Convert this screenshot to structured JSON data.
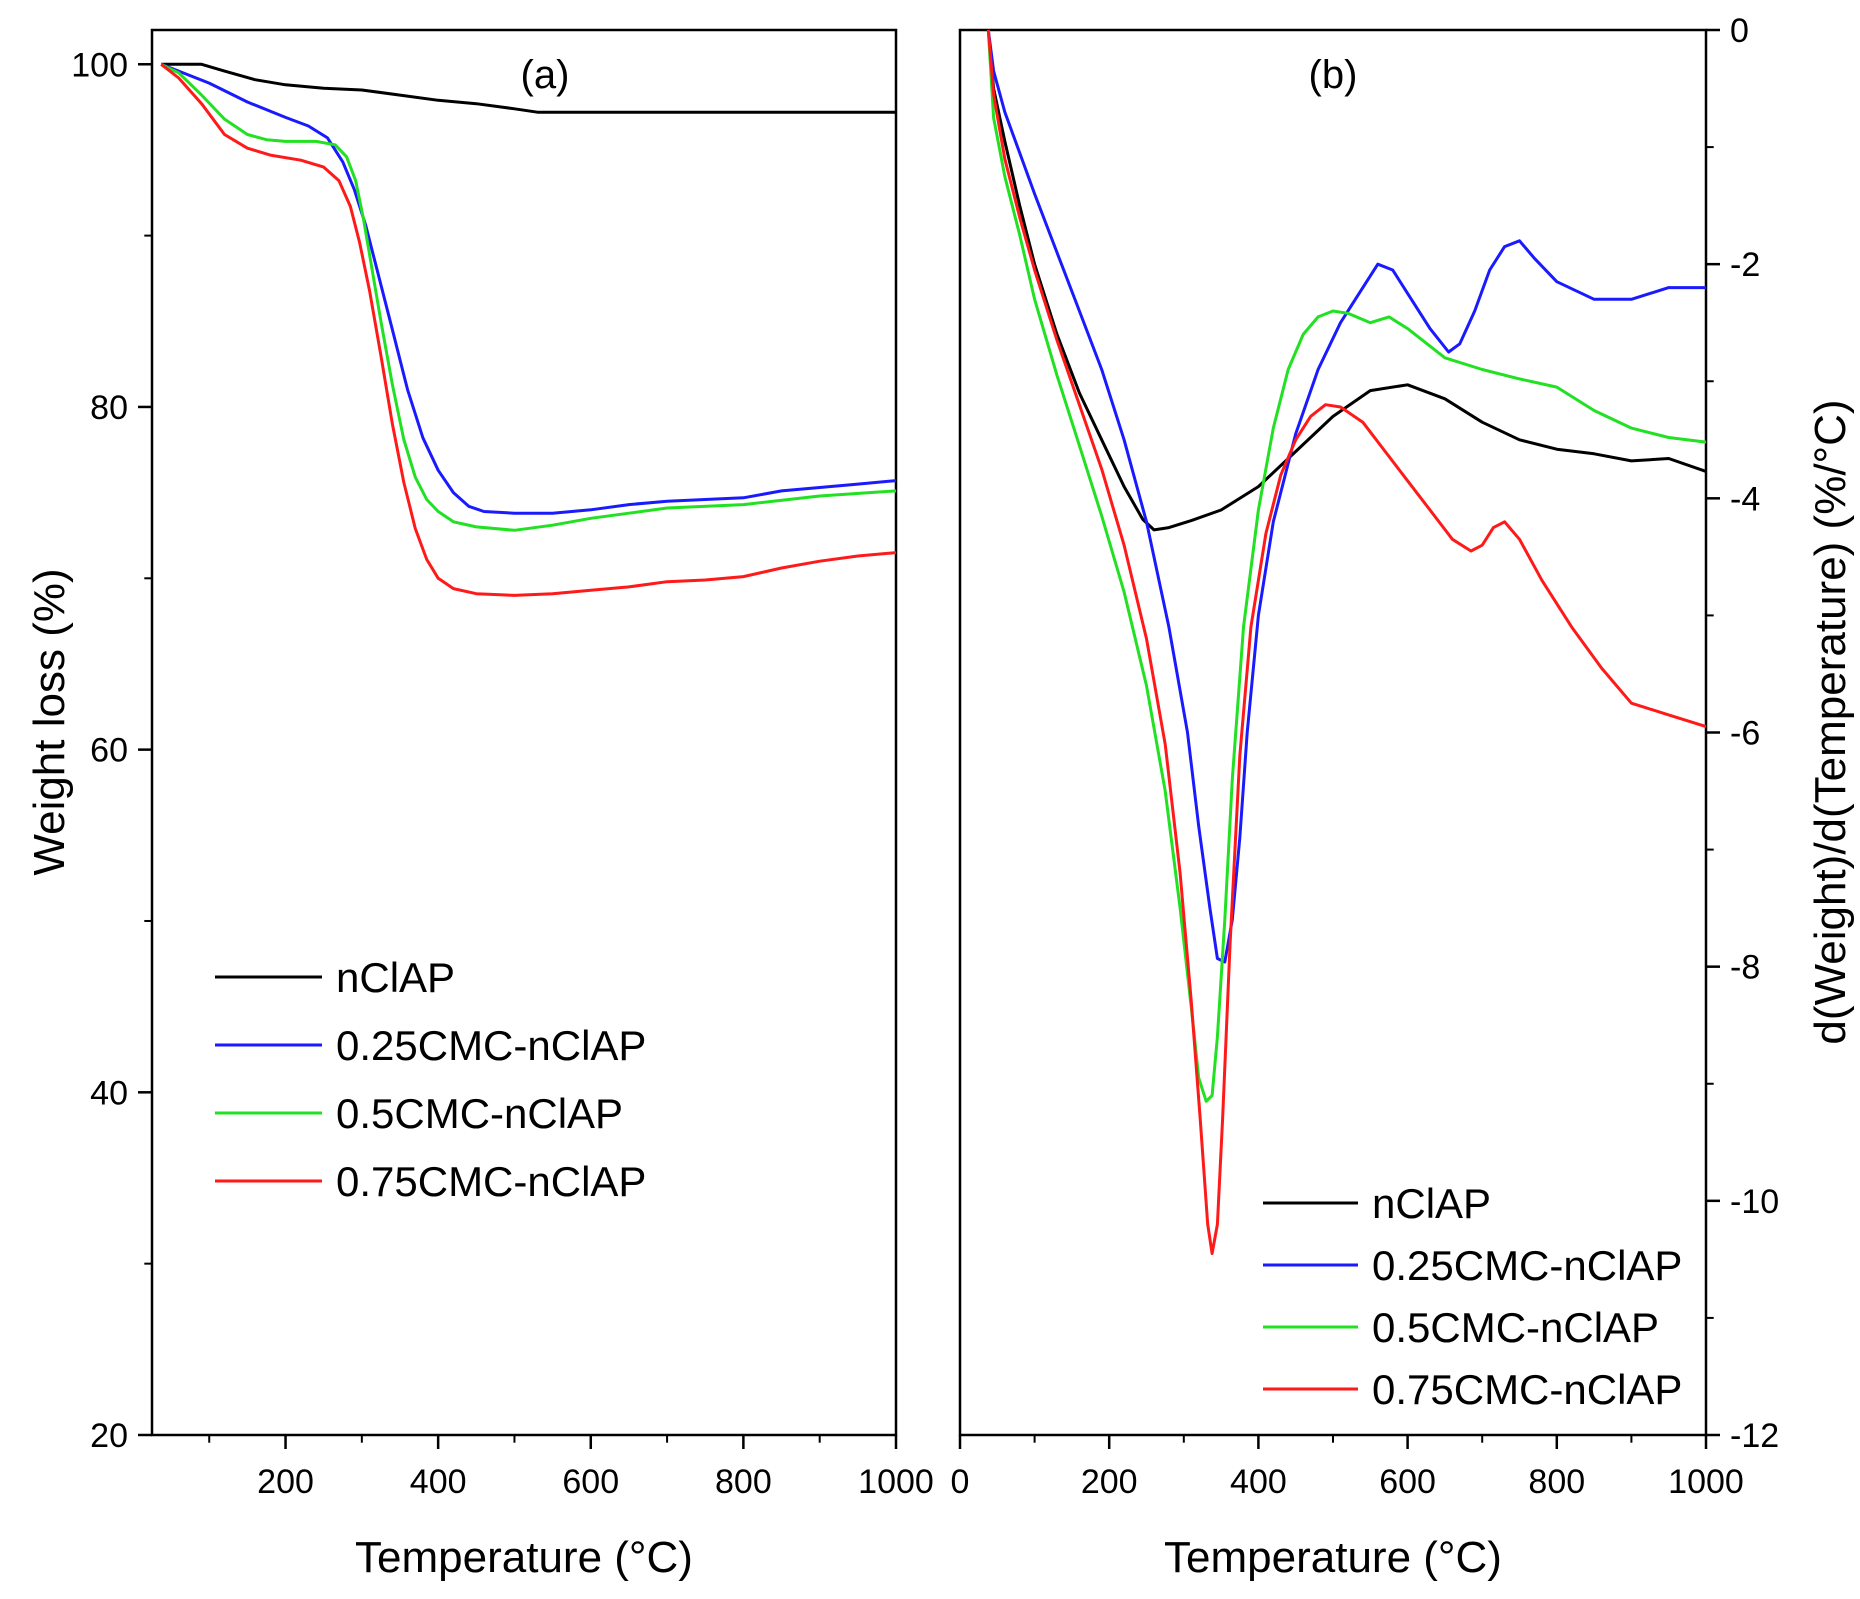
{
  "colors": {
    "nClAP": "#000000",
    "0.25CMC-nClAP": "#1a1aff",
    "0.5CMC-nClAP": "#22e022",
    "0.75CMC-nClAP": "#ff1a1a"
  },
  "chart_data": [
    {
      "type": "line",
      "panel_label": "(a)",
      "xlabel": "Temperature (°C)",
      "ylabel": "Weight loss (%)",
      "xlim": [
        25,
        1000
      ],
      "ylim": [
        20,
        102
      ],
      "xticks": [
        200,
        400,
        600,
        800,
        1000
      ],
      "yticks": [
        20,
        40,
        60,
        80,
        100
      ],
      "xtick_labels": [
        "200",
        "400",
        "600",
        "800",
        "1000"
      ],
      "ytick_labels": [
        "20",
        "40",
        "60",
        "80",
        "100"
      ],
      "grid": false,
      "legend_position": "lower-left",
      "series": [
        {
          "name": "nClAP",
          "points": [
            [
              37,
              100
            ],
            [
              60,
              100
            ],
            [
              90,
              100
            ],
            [
              120,
              99.6
            ],
            [
              160,
              99.1
            ],
            [
              200,
              98.8
            ],
            [
              250,
              98.6
            ],
            [
              300,
              98.5
            ],
            [
              350,
              98.2
            ],
            [
              400,
              97.9
            ],
            [
              450,
              97.7
            ],
            [
              500,
              97.4
            ],
            [
              530,
              97.2
            ],
            [
              600,
              97.2
            ],
            [
              700,
              97.2
            ],
            [
              800,
              97.2
            ],
            [
              900,
              97.2
            ],
            [
              1000,
              97.2
            ]
          ]
        },
        {
          "name": "0.25CMC-nClAP",
          "points": [
            [
              37,
              100
            ],
            [
              60,
              99.6
            ],
            [
              100,
              98.9
            ],
            [
              150,
              97.8
            ],
            [
              200,
              96.9
            ],
            [
              230,
              96.4
            ],
            [
              255,
              95.7
            ],
            [
              275,
              94.3
            ],
            [
              290,
              92.7
            ],
            [
              305,
              90.6
            ],
            [
              320,
              88.0
            ],
            [
              340,
              84.5
            ],
            [
              360,
              81.0
            ],
            [
              380,
              78.2
            ],
            [
              400,
              76.3
            ],
            [
              420,
              75.0
            ],
            [
              440,
              74.2
            ],
            [
              460,
              73.9
            ],
            [
              500,
              73.8
            ],
            [
              550,
              73.8
            ],
            [
              600,
              74.0
            ],
            [
              650,
              74.3
            ],
            [
              700,
              74.5
            ],
            [
              750,
              74.6
            ],
            [
              800,
              74.7
            ],
            [
              850,
              75.1
            ],
            [
              900,
              75.3
            ],
            [
              950,
              75.5
            ],
            [
              1000,
              75.7
            ]
          ]
        },
        {
          "name": "0.5CMC-nClAP",
          "points": [
            [
              37,
              100
            ],
            [
              60,
              99.5
            ],
            [
              90,
              98.2
            ],
            [
              120,
              96.8
            ],
            [
              150,
              95.9
            ],
            [
              175,
              95.6
            ],
            [
              200,
              95.5
            ],
            [
              240,
              95.5
            ],
            [
              265,
              95.3
            ],
            [
              280,
              94.6
            ],
            [
              292,
              93.2
            ],
            [
              302,
              91.0
            ],
            [
              312,
              88.4
            ],
            [
              325,
              85.0
            ],
            [
              340,
              81.3
            ],
            [
              355,
              78.1
            ],
            [
              370,
              75.9
            ],
            [
              385,
              74.6
            ],
            [
              400,
              73.9
            ],
            [
              420,
              73.3
            ],
            [
              450,
              73.0
            ],
            [
              500,
              72.8
            ],
            [
              550,
              73.1
            ],
            [
              600,
              73.5
            ],
            [
              650,
              73.8
            ],
            [
              700,
              74.1
            ],
            [
              800,
              74.3
            ],
            [
              900,
              74.8
            ],
            [
              1000,
              75.1
            ]
          ]
        },
        {
          "name": "0.75CMC-nClAP",
          "points": [
            [
              37,
              100
            ],
            [
              60,
              99.2
            ],
            [
              90,
              97.7
            ],
            [
              120,
              95.9
            ],
            [
              150,
              95.1
            ],
            [
              180,
              94.7
            ],
            [
              220,
              94.4
            ],
            [
              250,
              94.0
            ],
            [
              270,
              93.2
            ],
            [
              285,
              91.7
            ],
            [
              297,
              89.6
            ],
            [
              310,
              86.8
            ],
            [
              325,
              83.0
            ],
            [
              340,
              79.0
            ],
            [
              355,
              75.6
            ],
            [
              370,
              72.9
            ],
            [
              385,
              71.1
            ],
            [
              400,
              70.0
            ],
            [
              420,
              69.4
            ],
            [
              450,
              69.1
            ],
            [
              500,
              69.0
            ],
            [
              550,
              69.1
            ],
            [
              600,
              69.3
            ],
            [
              650,
              69.5
            ],
            [
              700,
              69.8
            ],
            [
              750,
              69.9
            ],
            [
              800,
              70.1
            ],
            [
              850,
              70.6
            ],
            [
              900,
              71.0
            ],
            [
              950,
              71.3
            ],
            [
              1000,
              71.5
            ]
          ]
        }
      ]
    },
    {
      "type": "line",
      "panel_label": "(b)",
      "xlabel": "Temperature (°C)",
      "ylabel": "d(Weight)/d(Temperature) (%/°C)",
      "xlim": [
        0,
        1000
      ],
      "ylim": [
        -12,
        0
      ],
      "xticks": [
        0,
        200,
        400,
        600,
        800,
        1000
      ],
      "yticks": [
        0,
        -2,
        -4,
        -6,
        -8,
        -10,
        -12
      ],
      "xtick_labels": [
        "0",
        "200",
        "400",
        "600",
        "800",
        "1000"
      ],
      "ytick_labels": [
        "0",
        "-2",
        "-4",
        "-6",
        "-8",
        "-10",
        "-12"
      ],
      "y_axis_side": "right",
      "grid": false,
      "legend_position": "lower-right",
      "series": [
        {
          "name": "nClAP",
          "points": [
            [
              38,
              0
            ],
            [
              45,
              -0.5
            ],
            [
              60,
              -0.95
            ],
            [
              80,
              -1.5
            ],
            [
              100,
              -2.0
            ],
            [
              130,
              -2.6
            ],
            [
              160,
              -3.1
            ],
            [
              190,
              -3.5
            ],
            [
              220,
              -3.9
            ],
            [
              245,
              -4.18
            ],
            [
              260,
              -4.27
            ],
            [
              280,
              -4.25
            ],
            [
              310,
              -4.19
            ],
            [
              350,
              -4.1
            ],
            [
              400,
              -3.9
            ],
            [
              450,
              -3.6
            ],
            [
              500,
              -3.3
            ],
            [
              550,
              -3.08
            ],
            [
              600,
              -3.03
            ],
            [
              650,
              -3.15
            ],
            [
              700,
              -3.35
            ],
            [
              750,
              -3.5
            ],
            [
              800,
              -3.58
            ],
            [
              850,
              -3.62
            ],
            [
              900,
              -3.68
            ],
            [
              950,
              -3.66
            ],
            [
              1000,
              -3.77
            ]
          ]
        },
        {
          "name": "0.25CMC-nClAP",
          "points": [
            [
              38,
              0
            ],
            [
              45,
              -0.35
            ],
            [
              60,
              -0.7
            ],
            [
              80,
              -1.05
            ],
            [
              100,
              -1.4
            ],
            [
              130,
              -1.9
            ],
            [
              160,
              -2.4
            ],
            [
              190,
              -2.9
            ],
            [
              220,
              -3.5
            ],
            [
              250,
              -4.2
            ],
            [
              280,
              -5.1
            ],
            [
              305,
              -6.0
            ],
            [
              320,
              -6.8
            ],
            [
              335,
              -7.5
            ],
            [
              345,
              -7.93
            ],
            [
              355,
              -7.96
            ],
            [
              365,
              -7.6
            ],
            [
              375,
              -6.9
            ],
            [
              385,
              -6.0
            ],
            [
              400,
              -5.0
            ],
            [
              420,
              -4.2
            ],
            [
              450,
              -3.45
            ],
            [
              480,
              -2.9
            ],
            [
              510,
              -2.5
            ],
            [
              535,
              -2.25
            ],
            [
              560,
              -2.0
            ],
            [
              580,
              -2.05
            ],
            [
              600,
              -2.25
            ],
            [
              630,
              -2.55
            ],
            [
              655,
              -2.75
            ],
            [
              670,
              -2.68
            ],
            [
              690,
              -2.4
            ],
            [
              710,
              -2.05
            ],
            [
              730,
              -1.85
            ],
            [
              750,
              -1.8
            ],
            [
              770,
              -1.95
            ],
            [
              800,
              -2.15
            ],
            [
              850,
              -2.3
            ],
            [
              900,
              -2.3
            ],
            [
              950,
              -2.2
            ],
            [
              1000,
              -2.2
            ]
          ]
        },
        {
          "name": "0.5CMC-nClAP",
          "points": [
            [
              38,
              0
            ],
            [
              45,
              -0.75
            ],
            [
              60,
              -1.25
            ],
            [
              80,
              -1.75
            ],
            [
              100,
              -2.3
            ],
            [
              130,
              -2.95
            ],
            [
              160,
              -3.55
            ],
            [
              190,
              -4.15
            ],
            [
              220,
              -4.8
            ],
            [
              250,
              -5.6
            ],
            [
              275,
              -6.5
            ],
            [
              295,
              -7.5
            ],
            [
              310,
              -8.35
            ],
            [
              320,
              -8.95
            ],
            [
              330,
              -9.15
            ],
            [
              338,
              -9.1
            ],
            [
              345,
              -8.6
            ],
            [
              355,
              -7.6
            ],
            [
              365,
              -6.4
            ],
            [
              380,
              -5.1
            ],
            [
              400,
              -4.1
            ],
            [
              420,
              -3.4
            ],
            [
              440,
              -2.9
            ],
            [
              460,
              -2.6
            ],
            [
              480,
              -2.45
            ],
            [
              500,
              -2.4
            ],
            [
              520,
              -2.42
            ],
            [
              550,
              -2.5
            ],
            [
              575,
              -2.45
            ],
            [
              600,
              -2.55
            ],
            [
              650,
              -2.8
            ],
            [
              700,
              -2.9
            ],
            [
              750,
              -2.98
            ],
            [
              800,
              -3.05
            ],
            [
              850,
              -3.25
            ],
            [
              900,
              -3.4
            ],
            [
              950,
              -3.48
            ],
            [
              1000,
              -3.52
            ]
          ]
        },
        {
          "name": "0.75CMC-nClAP",
          "points": [
            [
              38,
              0
            ],
            [
              45,
              -0.55
            ],
            [
              60,
              -1.1
            ],
            [
              80,
              -1.6
            ],
            [
              100,
              -2.05
            ],
            [
              130,
              -2.65
            ],
            [
              160,
              -3.2
            ],
            [
              190,
              -3.75
            ],
            [
              220,
              -4.4
            ],
            [
              250,
              -5.2
            ],
            [
              275,
              -6.1
            ],
            [
              295,
              -7.2
            ],
            [
              310,
              -8.3
            ],
            [
              322,
              -9.3
            ],
            [
              332,
              -10.2
            ],
            [
              338,
              -10.45
            ],
            [
              345,
              -10.2
            ],
            [
              352,
              -9.3
            ],
            [
              362,
              -7.8
            ],
            [
              375,
              -6.2
            ],
            [
              390,
              -5.1
            ],
            [
              410,
              -4.3
            ],
            [
              430,
              -3.8
            ],
            [
              450,
              -3.5
            ],
            [
              470,
              -3.3
            ],
            [
              490,
              -3.2
            ],
            [
              510,
              -3.22
            ],
            [
              540,
              -3.35
            ],
            [
              570,
              -3.6
            ],
            [
              600,
              -3.85
            ],
            [
              630,
              -4.1
            ],
            [
              660,
              -4.35
            ],
            [
              685,
              -4.45
            ],
            [
              700,
              -4.4
            ],
            [
              715,
              -4.25
            ],
            [
              730,
              -4.2
            ],
            [
              750,
              -4.35
            ],
            [
              780,
              -4.7
            ],
            [
              820,
              -5.1
            ],
            [
              860,
              -5.45
            ],
            [
              900,
              -5.75
            ],
            [
              950,
              -5.85
            ],
            [
              1000,
              -5.95
            ]
          ]
        }
      ]
    }
  ]
}
